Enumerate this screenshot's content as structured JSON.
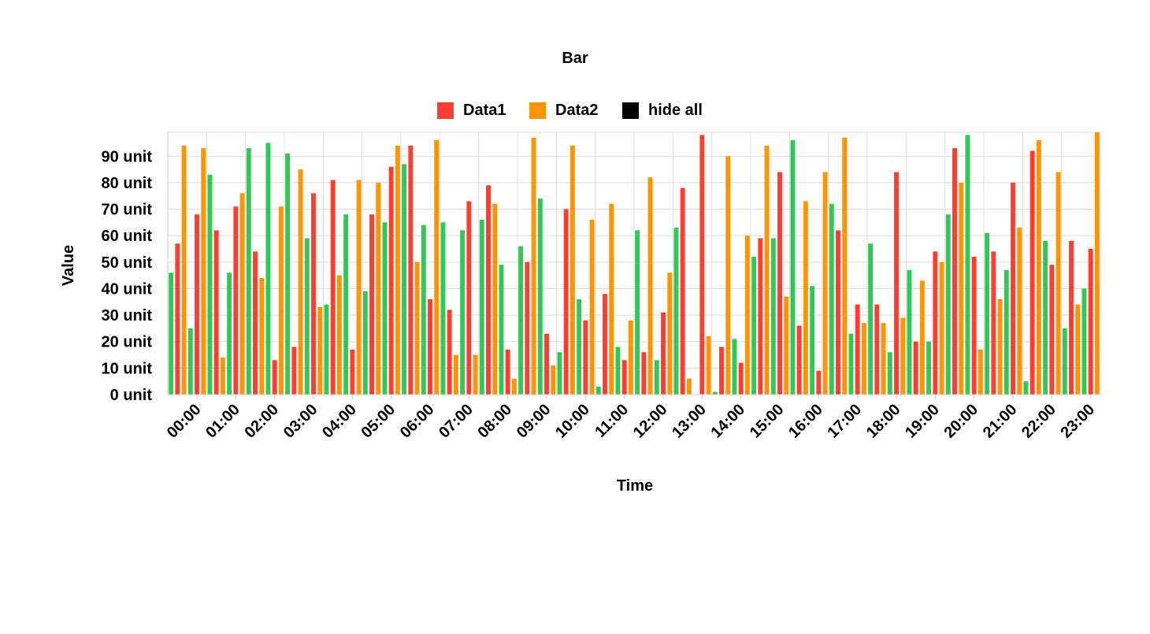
{
  "chart_data": {
    "type": "bar",
    "title": "Bar",
    "xlabel": "Time",
    "ylabel": "Value",
    "y_tick_suffix": " unit",
    "ylim": [
      0,
      99
    ],
    "y_ticks": [
      0,
      10,
      20,
      30,
      40,
      50,
      60,
      70,
      80,
      90
    ],
    "grid": true,
    "legend_position": "top-center",
    "legend": [
      {
        "label": "Data1",
        "color": "#ff3d33"
      },
      {
        "label": "Data2",
        "color": "#ff9500"
      },
      {
        "label": "hide all",
        "color": "#000000"
      }
    ],
    "categories": [
      "00:00",
      "01:00",
      "02:00",
      "03:00",
      "04:00",
      "05:00",
      "06:00",
      "07:00",
      "08:00",
      "09:00",
      "10:00",
      "11:00",
      "12:00",
      "13:00",
      "14:00",
      "15:00",
      "16:00",
      "17:00",
      "18:00",
      "19:00",
      "20:00",
      "21:00",
      "22:00",
      "23:00"
    ],
    "series": [
      {
        "color": "#33c759",
        "values": [
          46,
          83,
          93,
          91,
          34,
          39,
          87,
          65,
          66,
          56,
          16,
          3,
          62,
          63,
          1,
          52,
          96,
          72,
          57,
          47,
          68,
          61,
          5,
          25
        ]
      },
      {
        "name": "Data1",
        "color": "#ff3d33",
        "values": [
          57,
          62,
          54,
          18,
          81,
          68,
          94,
          32,
          79,
          50,
          70,
          38,
          16,
          78,
          18,
          59,
          26,
          62,
          34,
          20,
          93,
          54,
          92,
          58
        ]
      },
      {
        "name": "Data2",
        "color": "#ff9500",
        "values": [
          94,
          14,
          44,
          85,
          45,
          80,
          50,
          15,
          72,
          97,
          94,
          72,
          82,
          6,
          90,
          94,
          73,
          97,
          27,
          43,
          80,
          36,
          96,
          34
        ]
      },
      {
        "color": "#33c759",
        "values": [
          25,
          46,
          95,
          59,
          68,
          65,
          64,
          62,
          49,
          74,
          36,
          18,
          13,
          0,
          21,
          59,
          41,
          23,
          16,
          20,
          98,
          47,
          58,
          40
        ]
      },
      {
        "color": "#ff3d33",
        "values": [
          68,
          71,
          13,
          76,
          17,
          86,
          36,
          73,
          17,
          23,
          28,
          13,
          31,
          98,
          12,
          84,
          9,
          34,
          84,
          54,
          52,
          80,
          49,
          55
        ]
      },
      {
        "color": "#ff9500",
        "values": [
          93,
          76,
          71,
          33,
          81,
          94,
          96,
          15,
          6,
          11,
          66,
          28,
          46,
          22,
          60,
          37,
          84,
          27,
          29,
          50,
          17,
          63,
          84,
          99
        ]
      }
    ]
  }
}
